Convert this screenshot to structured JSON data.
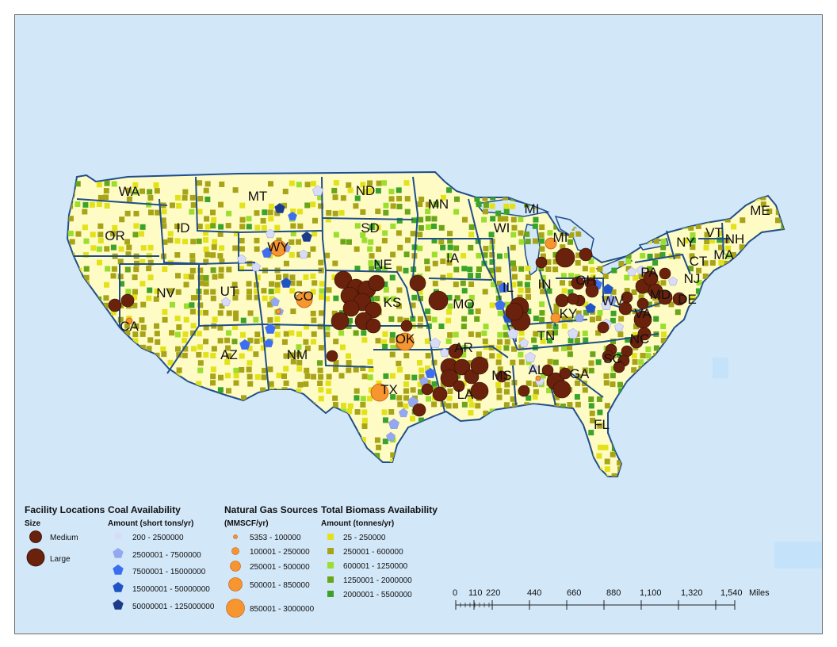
{
  "colors": {
    "ocean": "#d2e7f8",
    "land": "#fffbc4",
    "state_border": "#1f4e8c",
    "facility": "#6b220c",
    "gas": "#f7952f",
    "gas_stroke": "#c05a10",
    "coal": [
      "#d8dcf9",
      "#93a8f0",
      "#3b6ef0",
      "#2054c4",
      "#1b3a8a"
    ],
    "biomass": [
      "#e3e21a",
      "#a8a418",
      "#9bde2e",
      "#6aa617",
      "#3aa32a"
    ]
  },
  "states": [
    {
      "abbr": "WA"
    },
    {
      "abbr": "OR"
    },
    {
      "abbr": "CA"
    },
    {
      "abbr": "ID"
    },
    {
      "abbr": "NV"
    },
    {
      "abbr": "MT"
    },
    {
      "abbr": "WY"
    },
    {
      "abbr": "UT"
    },
    {
      "abbr": "AZ"
    },
    {
      "abbr": "CO"
    },
    {
      "abbr": "NM"
    },
    {
      "abbr": "ND"
    },
    {
      "abbr": "SD"
    },
    {
      "abbr": "NE"
    },
    {
      "abbr": "KS"
    },
    {
      "abbr": "OK"
    },
    {
      "abbr": "TX"
    },
    {
      "abbr": "MN"
    },
    {
      "abbr": "IA"
    },
    {
      "abbr": "MO"
    },
    {
      "abbr": "AR"
    },
    {
      "abbr": "LA"
    },
    {
      "abbr": "WI"
    },
    {
      "abbr": "IL"
    },
    {
      "abbr": "MI"
    },
    {
      "abbr": "MI"
    },
    {
      "abbr": "IN"
    },
    {
      "abbr": "KY"
    },
    {
      "abbr": "TN"
    },
    {
      "abbr": "MS"
    },
    {
      "abbr": "AL"
    },
    {
      "abbr": "GA"
    },
    {
      "abbr": "FL"
    },
    {
      "abbr": "OH"
    },
    {
      "abbr": "WV"
    },
    {
      "abbr": "VA"
    },
    {
      "abbr": "NC"
    },
    {
      "abbr": "SC"
    },
    {
      "abbr": "PA"
    },
    {
      "abbr": "NY"
    },
    {
      "abbr": "MD"
    },
    {
      "abbr": "DE"
    },
    {
      "abbr": "NJ"
    },
    {
      "abbr": "CT"
    },
    {
      "abbr": "MA"
    },
    {
      "abbr": "VT"
    },
    {
      "abbr": "NH"
    },
    {
      "abbr": "ME"
    }
  ],
  "legend": {
    "facility": {
      "title": "Facility Locations",
      "subtitle": "Size",
      "items": [
        {
          "label": "Medium",
          "size": "medium"
        },
        {
          "label": "Large",
          "size": "large"
        }
      ]
    },
    "coal": {
      "title": "Coal Availability",
      "subtitle": "Amount (short tons/yr)",
      "items": [
        {
          "label": "200 - 2500000"
        },
        {
          "label": "2500001 - 7500000"
        },
        {
          "label": "7500001 - 15000000"
        },
        {
          "label": "15000001 - 50000000"
        },
        {
          "label": "50000001 - 125000000"
        }
      ]
    },
    "gas": {
      "title": "Natural Gas Sources",
      "subtitle": "(MMSCF/yr)",
      "items": [
        {
          "label": "5353 - 100000"
        },
        {
          "label": "100001 - 250000"
        },
        {
          "label": "250001 - 500000"
        },
        {
          "label": "500001 - 850000"
        },
        {
          "label": "850001 - 3000000"
        }
      ]
    },
    "biomass": {
      "title": "Total Biomass Availability",
      "subtitle": "Amount (tonnes/yr)",
      "items": [
        {
          "label": "25 - 250000"
        },
        {
          "label": "250001 - 600000"
        },
        {
          "label": "600001 - 1250000"
        },
        {
          "label": "1250001 - 2000000"
        },
        {
          "label": "2000001 - 5500000"
        }
      ]
    }
  },
  "scale_bar": {
    "ticks": [
      "0",
      "110",
      "220",
      "440",
      "660",
      "880",
      "1,100",
      "1,320",
      "1,540"
    ],
    "unit": "Miles"
  }
}
